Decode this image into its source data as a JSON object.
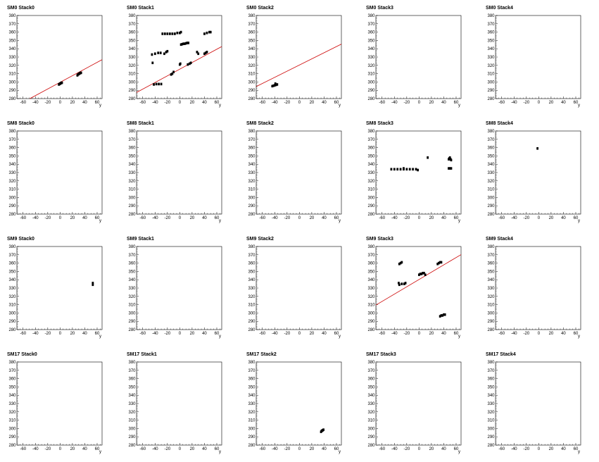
{
  "chart_data": {
    "type": "scatter",
    "xlabel": "y",
    "xlim": [
      -70,
      68
    ],
    "ylim": [
      280,
      380
    ],
    "xticks": [
      -60,
      -40,
      -20,
      0,
      20,
      40,
      60
    ],
    "yticks": [
      280,
      290,
      300,
      310,
      320,
      330,
      340,
      350,
      360,
      370,
      380
    ],
    "point_color": "#000000",
    "fit_color": "#cc0000",
    "panels": [
      {
        "title": "SM0 Stack0",
        "fit": [
          299.6,
          0.4
        ],
        "points": [
          [
            -2,
            297
          ],
          [
            -1,
            297.5
          ],
          [
            0,
            298
          ],
          [
            1,
            298.5
          ],
          [
            2,
            299
          ],
          [
            3,
            299
          ],
          [
            28,
            308
          ],
          [
            29,
            309
          ],
          [
            30,
            309.5
          ],
          [
            31,
            310
          ],
          [
            32,
            310.5
          ],
          [
            33,
            311
          ],
          [
            34,
            311
          ]
        ]
      },
      {
        "title": "SM0 Stack1",
        "fit": [
          315.4,
          0.4
        ],
        "points": [
          [
            -42,
            297
          ],
          [
            -38,
            297.5
          ],
          [
            -34,
            297.5
          ],
          [
            -30,
            297.5
          ],
          [
            -44,
            323
          ],
          [
            -45,
            333
          ],
          [
            -40,
            334
          ],
          [
            -35,
            335
          ],
          [
            -31,
            335
          ],
          [
            -25,
            334
          ],
          [
            -22,
            336
          ],
          [
            -20,
            337
          ],
          [
            -28,
            358
          ],
          [
            -24,
            358
          ],
          [
            -20,
            358
          ],
          [
            -16,
            358
          ],
          [
            -12,
            358
          ],
          [
            -8,
            358
          ],
          [
            -4,
            359
          ],
          [
            0,
            359
          ],
          [
            2,
            360
          ],
          [
            -14,
            309
          ],
          [
            -12,
            310
          ],
          [
            -10,
            312
          ],
          [
            0,
            321
          ],
          [
            1,
            322
          ],
          [
            2,
            345
          ],
          [
            4,
            345.5
          ],
          [
            6,
            346
          ],
          [
            8,
            346
          ],
          [
            10,
            346.5
          ],
          [
            12,
            347
          ],
          [
            14,
            347
          ],
          [
            13,
            321
          ],
          [
            16,
            322
          ],
          [
            18,
            323
          ],
          [
            28,
            336
          ],
          [
            30,
            334
          ],
          [
            40,
            334
          ],
          [
            42,
            335
          ],
          [
            44,
            336
          ],
          [
            40,
            358
          ],
          [
            44,
            359
          ],
          [
            48,
            360
          ],
          [
            50,
            360
          ]
        ]
      },
      {
        "title": "SM0 Stack2",
        "fit": [
          320.4,
          0.37
        ],
        "points": [
          [
            -44,
            295
          ],
          [
            -42,
            295.5
          ],
          [
            -40,
            296
          ],
          [
            -38,
            296.5
          ],
          [
            -36,
            297
          ],
          [
            -39,
            298
          ]
        ]
      },
      {
        "title": "SM0 Stack3",
        "points": []
      },
      {
        "title": "SM0 Stack4",
        "points": []
      },
      {
        "title": "SM8 Stack0",
        "points": []
      },
      {
        "title": "SM8 Stack1",
        "points": []
      },
      {
        "title": "SM8 Stack2",
        "points": []
      },
      {
        "title": "SM8 Stack3",
        "points": [
          [
            -45,
            334
          ],
          [
            -40,
            334
          ],
          [
            -35,
            334
          ],
          [
            -30,
            334
          ],
          [
            -25,
            334
          ],
          [
            -20,
            334
          ],
          [
            -15,
            334
          ],
          [
            -10,
            334
          ],
          [
            -5,
            334
          ],
          [
            -2,
            333
          ],
          [
            -25,
            335
          ],
          [
            14,
            348
          ],
          [
            48,
            346
          ],
          [
            49,
            347
          ],
          [
            50,
            348
          ],
          [
            51,
            346
          ],
          [
            52,
            345
          ],
          [
            48,
            335
          ],
          [
            50,
            335
          ],
          [
            52,
            335
          ]
        ]
      },
      {
        "title": "SM8 Stack4",
        "points": [
          [
            -2,
            359
          ]
        ]
      },
      {
        "title": "SM9 Stack0",
        "points": [
          [
            53,
            334
          ],
          [
            53,
            336
          ]
        ]
      },
      {
        "title": "SM9 Stack1",
        "points": []
      },
      {
        "title": "SM9 Stack2",
        "points": []
      },
      {
        "title": "SM9 Stack3",
        "fit": [
          340.3,
          0.44
        ],
        "points": [
          [
            -32,
            359
          ],
          [
            -30,
            360
          ],
          [
            -28,
            361
          ],
          [
            -33,
            336
          ],
          [
            -32,
            334
          ],
          [
            -28,
            335
          ],
          [
            -24,
            335
          ],
          [
            -22,
            336
          ],
          [
            0,
            346
          ],
          [
            2,
            347
          ],
          [
            4,
            347
          ],
          [
            6,
            348
          ],
          [
            8,
            348
          ],
          [
            10,
            346
          ],
          [
            30,
            359
          ],
          [
            32,
            360
          ],
          [
            34,
            361
          ],
          [
            36,
            361
          ],
          [
            34,
            296
          ],
          [
            36,
            297
          ],
          [
            38,
            297
          ],
          [
            40,
            298
          ],
          [
            42,
            298
          ]
        ]
      },
      {
        "title": "SM9 Stack4",
        "points": []
      },
      {
        "title": "SM17 Stack0",
        "points": []
      },
      {
        "title": "SM17 Stack1",
        "points": []
      },
      {
        "title": "SM17 Stack2",
        "points": [
          [
            35,
            296
          ],
          [
            36,
            297
          ],
          [
            37,
            297.5
          ],
          [
            38,
            298
          ],
          [
            39,
            298.5
          ]
        ]
      },
      {
        "title": "SM17 Stack3",
        "points": []
      },
      {
        "title": "SM17 Stack4",
        "points": []
      }
    ]
  }
}
